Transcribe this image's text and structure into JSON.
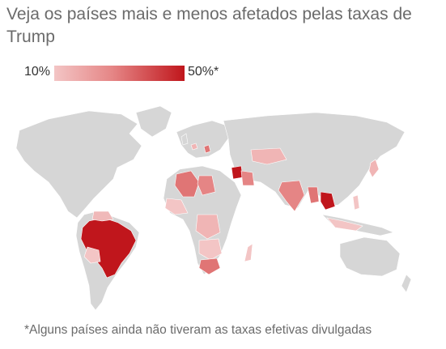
{
  "header": {
    "title": "Veja os países mais e menos afetados pelas taxas de Trump"
  },
  "legend": {
    "min_label": "10%",
    "max_label": "50%*",
    "color_low": "#f3c5c5",
    "color_mid": "#e58585",
    "color_high": "#c0161c"
  },
  "map": {
    "base_land_color": "#d6d6d6",
    "ocean_color": "#ffffff",
    "highlighted_regions": [
      {
        "region": "Brazil",
        "level": "50%"
      },
      {
        "region": "Laos",
        "level": "high"
      },
      {
        "region": "Syria",
        "level": "high"
      },
      {
        "region": "Algeria",
        "level": "medium"
      },
      {
        "region": "Libya",
        "level": "medium"
      },
      {
        "region": "Iraq",
        "level": "medium"
      },
      {
        "region": "India",
        "level": "medium"
      },
      {
        "region": "Myanmar",
        "level": "medium"
      },
      {
        "region": "Vietnam",
        "level": "medium"
      },
      {
        "region": "South Africa",
        "level": "medium"
      },
      {
        "region": "Kazakhstan",
        "level": "low"
      },
      {
        "region": "Bolivia",
        "level": "low"
      },
      {
        "region": "Venezuela",
        "level": "low"
      },
      {
        "region": "Southern Africa",
        "level": "low"
      },
      {
        "region": "Madagascar",
        "level": "low"
      },
      {
        "region": "Indonesia",
        "level": "low"
      }
    ]
  },
  "footnote": "*Alguns países ainda não tiveram as taxas efetivas divulgadas"
}
